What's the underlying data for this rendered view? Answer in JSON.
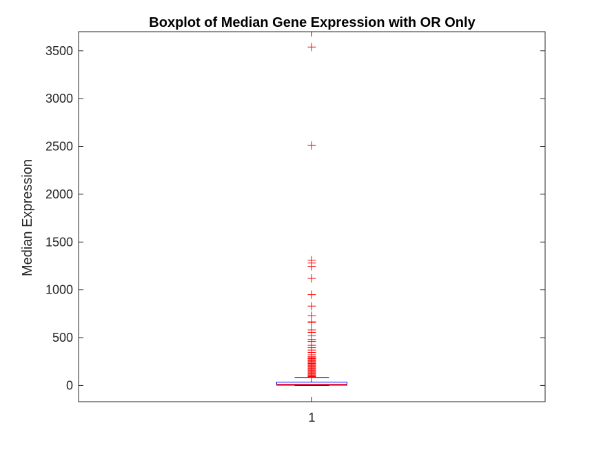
{
  "chart_data": {
    "type": "box",
    "title": "Boxplot of Median Gene Expression with OR Only",
    "xlabel": "",
    "ylabel": "Median Expression",
    "categories": [
      "1"
    ],
    "yticks": [
      0,
      500,
      1000,
      1500,
      2000,
      2500,
      3000,
      3500
    ],
    "ylim": [
      -170,
      3700
    ],
    "xlim": [
      0.5,
      1.5
    ],
    "grid": false,
    "colors": {
      "box": "#0000ff",
      "median": "#ff0000",
      "whisker": "#000000",
      "outlier": "#ff0000",
      "axis": "#262626"
    },
    "boxes": [
      {
        "category": "1",
        "whisker_low": 0,
        "q1": 3,
        "median": 10,
        "q3": 35,
        "whisker_high": 84,
        "outliers": [
          3540,
          2510,
          1310,
          1280,
          1245,
          1120,
          950,
          830,
          730,
          665,
          660,
          580,
          555,
          520,
          480,
          460,
          420,
          395,
          370,
          345,
          320,
          300,
          290,
          280,
          270,
          260,
          250,
          240,
          230,
          220,
          210,
          200,
          190,
          180,
          170,
          160,
          150,
          140,
          130,
          120,
          110,
          100,
          95,
          90
        ]
      }
    ]
  }
}
